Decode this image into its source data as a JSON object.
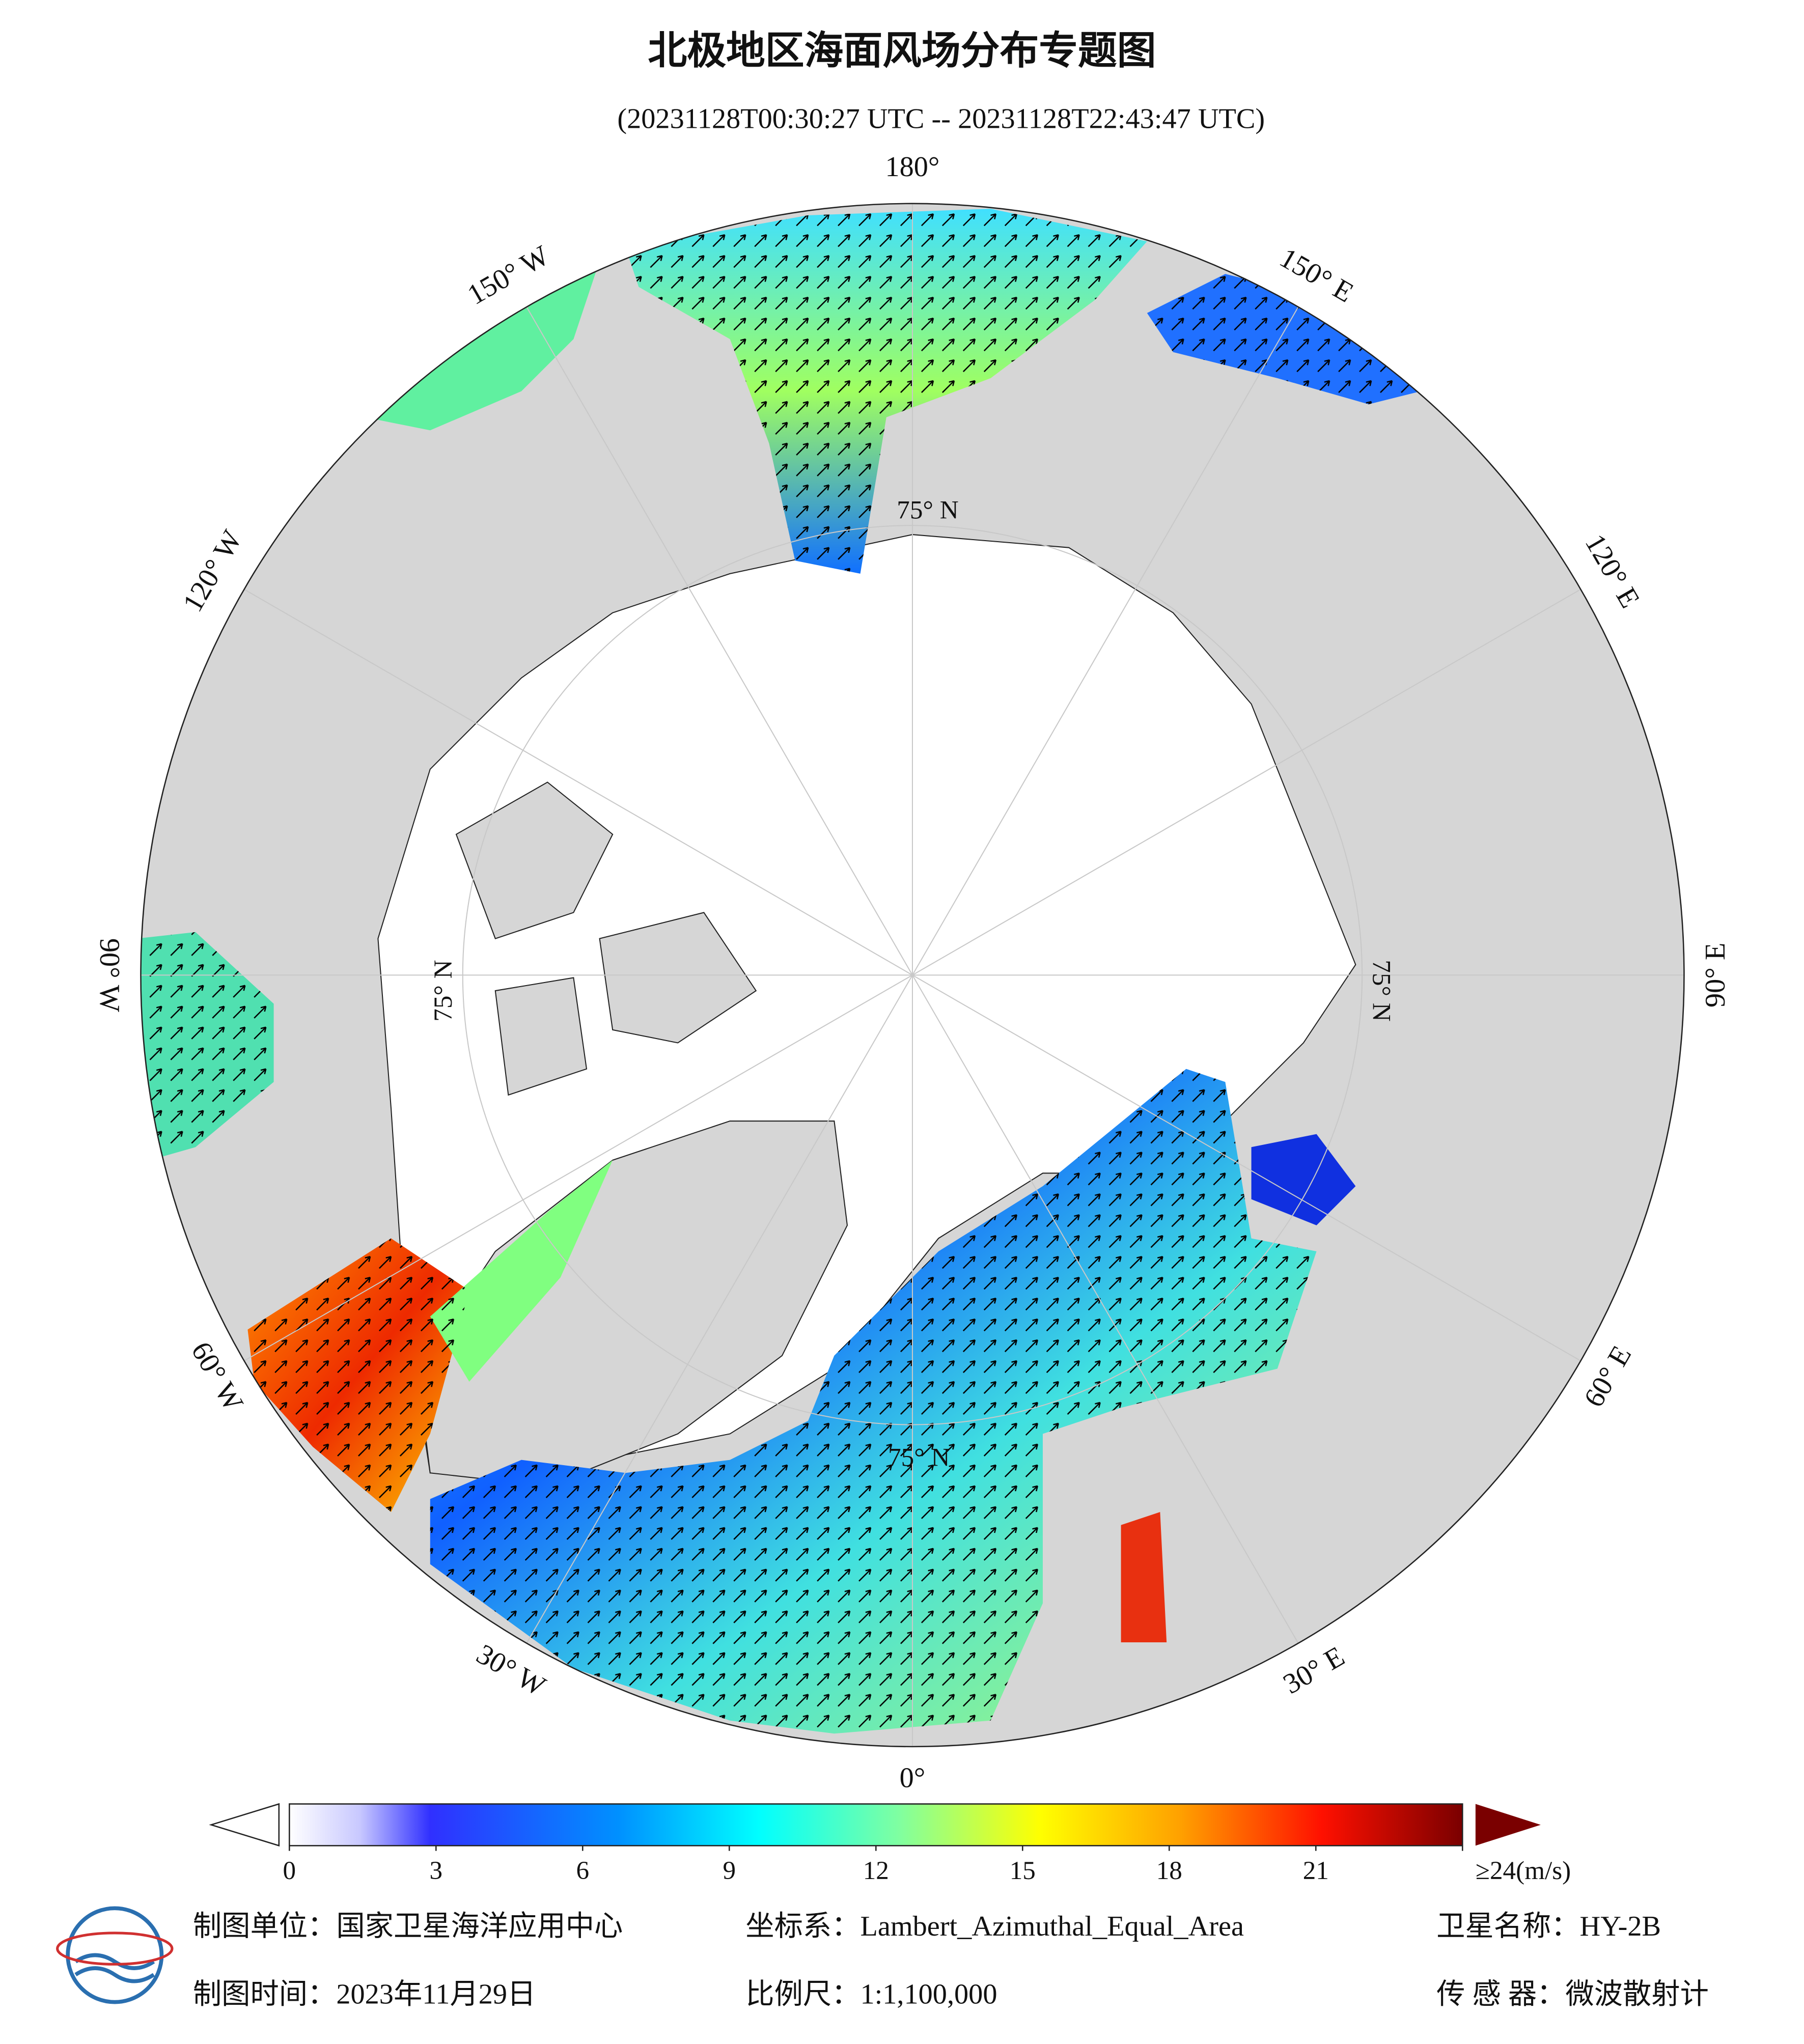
{
  "header": {
    "title": "北极地区海面风场分布专题图",
    "subtitle": "(20231128T00:30:27 UTC -- 20231128T22:43:47 UTC)"
  },
  "map": {
    "longitude_labels": [
      {
        "lon": 180,
        "label": "180°"
      },
      {
        "lon": 150,
        "label": "150° E"
      },
      {
        "lon": 120,
        "label": "120° E"
      },
      {
        "lon": 90,
        "label": "90° E"
      },
      {
        "lon": 60,
        "label": "60° E"
      },
      {
        "lon": 30,
        "label": "30° E"
      },
      {
        "lon": 0,
        "label": "0°"
      },
      {
        "lon": -30,
        "label": "30° W"
      },
      {
        "lon": -60,
        "label": "60° W"
      },
      {
        "lon": -90,
        "label": "90° W"
      },
      {
        "lon": -120,
        "label": "120° W"
      },
      {
        "lon": -150,
        "label": "150° W"
      }
    ],
    "latitude_label": "75° N"
  },
  "colorbar": {
    "lim": [
      0,
      24
    ],
    "ticks": [
      0,
      3,
      6,
      9,
      12,
      15,
      18,
      21,
      {
        "value": 24,
        "label": "≥24(m/s)"
      }
    ]
  },
  "footer": {
    "unit": "制图单位：国家卫星海洋应用中心",
    "crs": "坐标系：Lambert_Azimuthal_Equal_Area",
    "satellite": "卫星名称：HY-2B",
    "date": "制图时间：2023年11月29日",
    "scale": "比例尺：1:1,100,000",
    "sensor": "传 感 器：微波散射计"
  }
}
